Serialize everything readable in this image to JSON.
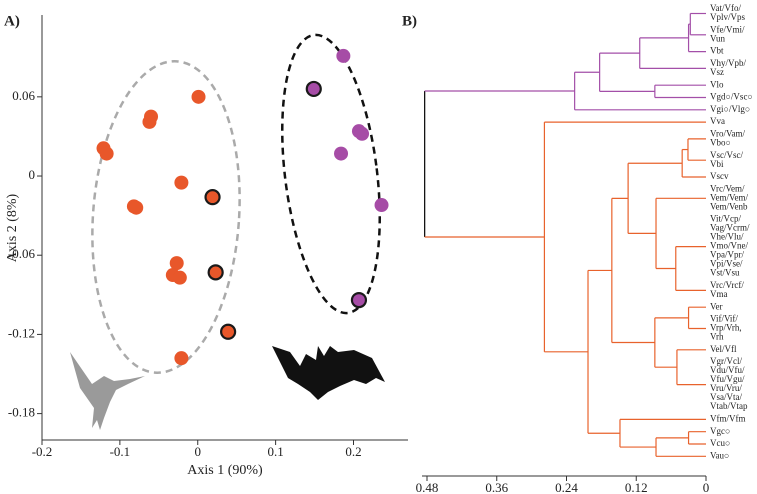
{
  "chart_data": [
    {
      "type": "scatter",
      "panel": "A)",
      "xlabel": "Axis 1 (90%)",
      "ylabel": "Axis 2 (8%)",
      "xlim": [
        -0.2,
        0.27
      ],
      "xticks": [
        -0.2,
        -0.1,
        0,
        0.1,
        0.2
      ],
      "ylim": [
        -0.2,
        0.122
      ],
      "yticks": [
        0.06,
        0,
        -0.06,
        -0.12,
        -0.18
      ],
      "series": [
        {
          "color": "#e8572a",
          "x": [
            0.001,
            -0.06,
            -0.062,
            -0.121,
            -0.117,
            -0.021,
            -0.082,
            -0.079,
            -0.027,
            -0.032,
            -0.023,
            -0.021
          ],
          "y": [
            0.06,
            0.045,
            0.041,
            0.021,
            0.017,
            -0.005,
            -0.023,
            -0.024,
            -0.066,
            -0.075,
            -0.077,
            -0.138
          ]
        },
        {
          "color": "#e8572a",
          "edgecolor": "#1a1a1a",
          "x": [
            0.019,
            0.023,
            0.039
          ],
          "y": [
            -0.016,
            -0.073,
            -0.118
          ]
        },
        {
          "color": "#a64ca6",
          "x": [
            0.187,
            0.207,
            0.211,
            0.184,
            0.236
          ],
          "y": [
            0.091,
            0.034,
            0.032,
            0.017,
            -0.022
          ]
        },
        {
          "color": "#a64ca6",
          "edgecolor": "#1a1a1a",
          "x": [
            0.149,
            0.207
          ],
          "y": [
            0.066,
            -0.094
          ]
        }
      ]
    },
    {
      "type": "dendrogram",
      "panel": "B)",
      "xlim": [
        0.48,
        0
      ],
      "xticks": [
        0.48,
        0.36,
        0.24,
        0.12,
        0
      ],
      "tree": {
        "height": 0.484,
        "color": "#000000",
        "children": [
          {
            "height": 0.226,
            "color": "#a34fa8",
            "children": [
              {
                "height": 0.183,
                "children": [
                  {
                    "height": 0.114,
                    "children": [
                      {
                        "height": 0.03,
                        "children": [
                          {
                            "height": 0.027,
                            "children": [
                              {
                                "label": [
                                  "Vat/Vfo/",
                                  "Vplv/Vps"
                                ]
                              },
                              {
                                "label": [
                                  "Vfe/Vmi/",
                                  "Vun"
                                ]
                              }
                            ]
                          },
                          {
                            "label": [
                              "Vbt"
                            ]
                          }
                        ]
                      },
                      {
                        "label": [
                          "Vhy/Vpb/",
                          "Vsz"
                        ]
                      }
                    ]
                  },
                  {
                    "height": 0.088,
                    "children": [
                      {
                        "label": [
                          "Vlo"
                        ]
                      },
                      {
                        "label": [
                          "Vgd○/Vsc○"
                        ]
                      }
                    ]
                  }
                ]
              },
              {
                "label": [
                  "Vgi○/Vlg○"
                ]
              }
            ]
          },
          {
            "height": 0.278,
            "color": "#e8622c",
            "children": [
              {
                "label": [
                  "Vva"
                ]
              },
              {
                "height": 0.203,
                "children": [
                  {
                    "height": 0.162,
                    "children": [
                      {
                        "height": 0.134,
                        "children": [
                          {
                            "height": 0.041,
                            "children": [
                              {
                                "height": 0.031,
                                "children": [
                                  {
                                    "label": [
                                      "Vro/Vam/",
                                      "Vbo○"
                                    ]
                                  },
                                  {
                                    "label": [
                                      "Vsc/Vsc/",
                                      "Vbi"
                                    ]
                                  }
                                ]
                              },
                              {
                                "label": [
                                  "Vscv"
                                ]
                              }
                            ]
                          },
                          {
                            "height": 0.086,
                            "children": [
                              {
                                "label": [
                                  "Vrc/Vem/",
                                  "Vem/Vem/",
                                  "Vem/Venb"
                                ]
                              },
                              {
                                "height": 0.052,
                                "children": [
                                  {
                                    "label": [
                                      "Vit/Vcp/",
                                      "Vag/Vcrm/",
                                      "Vhe/Vlu/",
                                      "Vmo/Vne/",
                                      "Vpa/Vpr/",
                                      "Vpi/Vse/",
                                      "Vst/Vsu"
                                    ]
                                  },
                                  {
                                    "label": [
                                      "Vrc/Vrcf/",
                                      "Vma"
                                    ]
                                  }
                                ]
                              }
                            ]
                          }
                        ]
                      },
                      {
                        "height": 0.088,
                        "children": [
                          {
                            "height": 0.03,
                            "children": [
                              {
                                "label": [
                                  "Ver"
                                ]
                              },
                              {
                                "label": [
                                  "Vif/Vif/",
                                  "Vrp/Vrh,",
                                  "Vrh"
                                ]
                              }
                            ]
                          },
                          {
                            "height": 0.05,
                            "children": [
                              {
                                "label": [
                                  "Vel/Vfl"
                                ]
                              },
                              {
                                "label": [
                                  "Vgr/Vcl/",
                                  "Vdu/Vfu/",
                                  "Vfu/Vgu/",
                                  "Vru/Vru/",
                                  "Vsa/Vta/",
                                  "Vtab/Vtap"
                                ]
                              }
                            ]
                          }
                        ]
                      }
                    ]
                  },
                  {
                    "height": 0.148,
                    "children": [
                      {
                        "label": [
                          "Vfm/Vfm"
                        ]
                      },
                      {
                        "height": 0.086,
                        "children": [
                          {
                            "height": 0.03,
                            "children": [
                              {
                                "label": [
                                  "Vgc○"
                                ]
                              },
                              {
                                "label": [
                                  "Vcu○"
                                ]
                              }
                            ]
                          },
                          {
                            "label": [
                              "Vau○"
                            ]
                          }
                        ]
                      }
                    ]
                  }
                ]
              }
            ]
          }
        ]
      }
    }
  ]
}
